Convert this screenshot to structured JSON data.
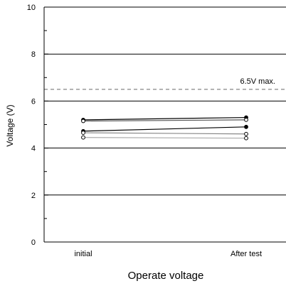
{
  "chart_data": {
    "type": "line",
    "title": "",
    "xlabel": "Operate voltage",
    "ylabel": "Voltage (V)",
    "categories": [
      "initial",
      "After test"
    ],
    "ylim": [
      0,
      10
    ],
    "y_ticks": [
      0,
      2,
      4,
      6,
      8,
      10
    ],
    "grid": "horizontal",
    "reference_line": {
      "value": 6.5,
      "label": "6.5V max.",
      "style": "dashed",
      "color": "#999999"
    },
    "series": [
      {
        "values": [
          5.2,
          5.3
        ],
        "marker": "filled",
        "color": "#000000"
      },
      {
        "values": [
          5.15,
          5.2
        ],
        "marker": "open",
        "color": "#555555"
      },
      {
        "values": [
          4.72,
          4.9
        ],
        "marker": "filled",
        "color": "#000000"
      },
      {
        "values": [
          4.65,
          4.6
        ],
        "marker": "open",
        "color": "#888888"
      },
      {
        "values": [
          4.45,
          4.42
        ],
        "marker": "open",
        "color": "#aaaaaa"
      }
    ]
  }
}
